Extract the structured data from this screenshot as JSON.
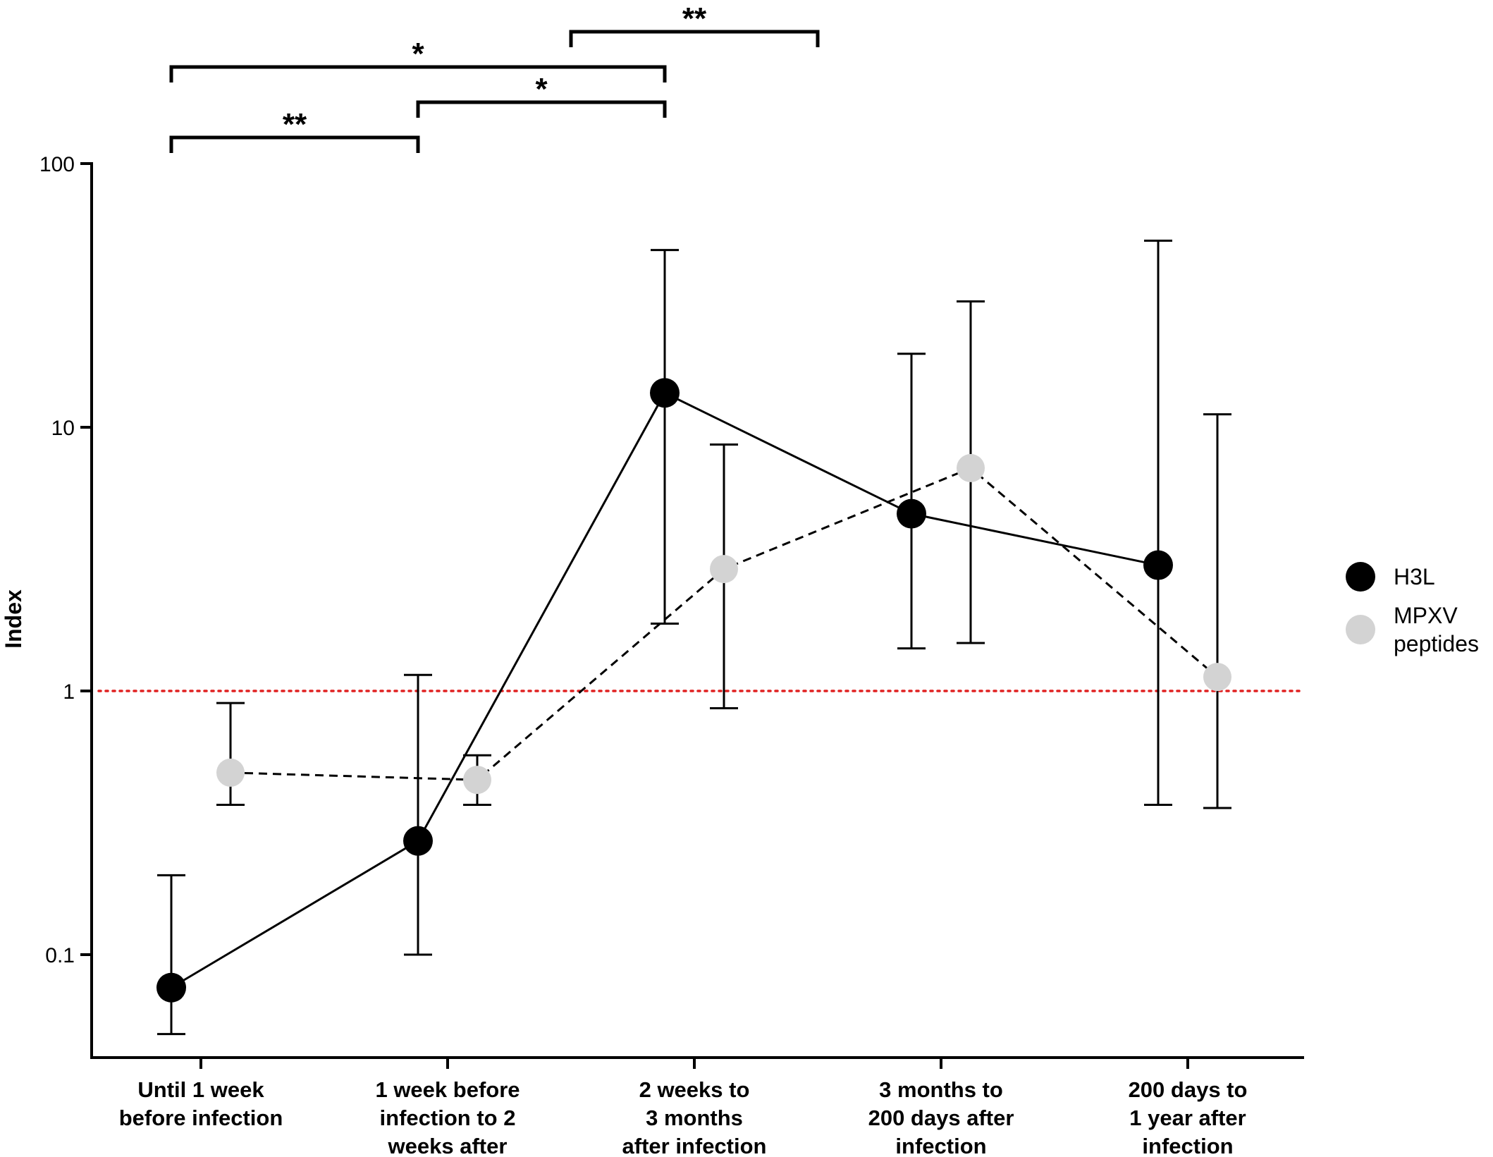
{
  "chart_data": {
    "type": "line",
    "ylabel": "Index",
    "yscale": "log",
    "ylim": [
      0.04,
      100
    ],
    "yticks": [
      {
        "value": 100,
        "label": "100"
      },
      {
        "value": 10,
        "label": "10"
      },
      {
        "value": 1,
        "label": "1"
      },
      {
        "value": 0.1,
        "label": "0.1"
      }
    ],
    "categories": [
      [
        "Until 1 week",
        "before infection"
      ],
      [
        "1 week before",
        "infection to 2",
        "weeks after"
      ],
      [
        "2 weeks to",
        "3 months",
        "after infection"
      ],
      [
        "3 months to",
        "200 days after",
        "infection"
      ],
      [
        "200 days to",
        "1 year after",
        "infection"
      ]
    ],
    "reference_line": {
      "value": 1,
      "color": "#e02020",
      "style": "dotted"
    },
    "legend_position": "right",
    "series": [
      {
        "name": "H3L",
        "color": "#000000",
        "line_style": "solid",
        "offset": -0.12,
        "values": [
          0.075,
          0.27,
          13.5,
          4.7,
          3.0
        ],
        "err_low": [
          0.05,
          0.1,
          1.8,
          1.45,
          0.37
        ],
        "err_high": [
          0.2,
          1.15,
          47,
          19,
          51
        ]
      },
      {
        "name": "MPXV peptides",
        "legend_lines": [
          "MPXV",
          "peptides"
        ],
        "color": "#d3d3d3",
        "line_style": "dashed",
        "offset": 0.12,
        "values": [
          0.49,
          0.46,
          2.9,
          7.0,
          1.13
        ],
        "err_low": [
          0.37,
          0.37,
          0.86,
          1.52,
          0.36
        ],
        "err_high": [
          0.9,
          0.57,
          8.6,
          30,
          11.2
        ]
      }
    ],
    "significance": [
      {
        "from": 0,
        "to": 2,
        "to_offset": -0.12,
        "level": 1,
        "label": "*"
      },
      {
        "from": 1,
        "to": 2,
        "to_offset": -0.12,
        "level": 2,
        "label": "*"
      },
      {
        "from": 0,
        "to": 1,
        "to_offset": -0.12,
        "level": 3,
        "label": "**"
      },
      {
        "from": 1.5,
        "to": 2.5,
        "to_offset": 0,
        "level": 0,
        "label": "**"
      }
    ]
  }
}
